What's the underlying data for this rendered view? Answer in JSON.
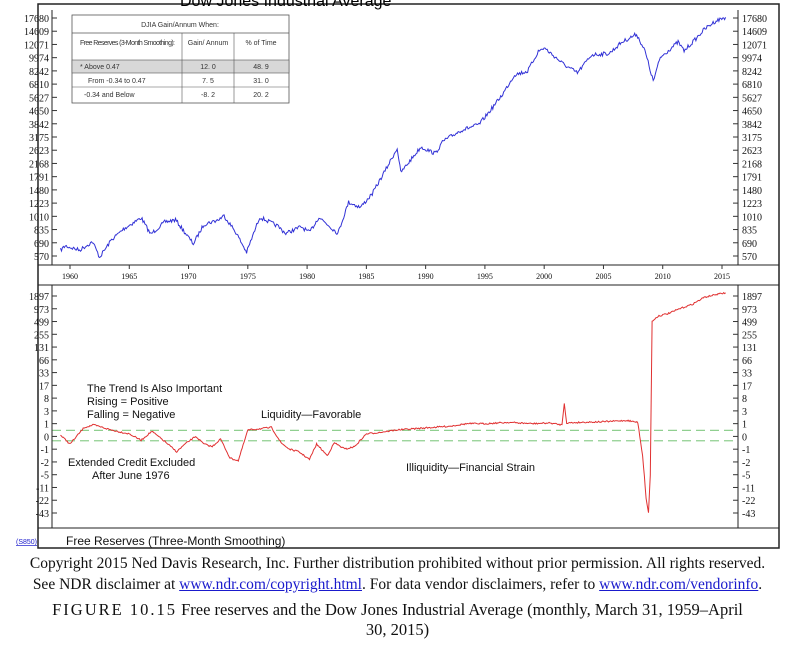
{
  "chart_data": [
    {
      "type": "line",
      "title": "Dow Jones Industrial Average",
      "y_scale": "log",
      "y_ticks": [
        "17680",
        "14609",
        "12071",
        "9974",
        "8242",
        "6810",
        "5627",
        "4650",
        "3842",
        "3175",
        "2623",
        "2168",
        "1791",
        "1480",
        "1223",
        "1010",
        "835",
        "690",
        "570"
      ],
      "x_ticks": [
        "1960",
        "1965",
        "1970",
        "1975",
        "1980",
        "1985",
        "1990",
        "1995",
        "2000",
        "2005",
        "2010",
        "2015"
      ],
      "xlim": [
        1959.25,
        2015.33
      ],
      "color": "#3232d6",
      "series": [
        {
          "x": [
            1959.2,
            1959.6,
            1960.8,
            1961.9,
            1962.5,
            1963.5,
            1964.5,
            1966.0,
            1966.8,
            1968.0,
            1968.9,
            1970.4,
            1971.3,
            1972.5,
            1973.0,
            1974.0,
            1974.9,
            1976.0,
            1977.5,
            1978.2,
            1979.5,
            1980.2,
            1981.0,
            1982.6,
            1983.5,
            1984.5,
            1985.5,
            1986.5,
            1987.6,
            1987.9,
            1989.6,
            1990.8,
            1991.5,
            1993.0,
            1994.5,
            1995.5,
            1996.5,
            1997.5,
            1998.6,
            1999.5,
            2000.0,
            2001.7,
            2002.8,
            2004.0,
            2005.5,
            2006.5,
            2007.8,
            2008.5,
            2009.2,
            2009.8,
            2011.3,
            2011.8,
            2012.8,
            2013.5,
            2014.5,
            2015.3
          ],
          "values": [
            620,
            660,
            620,
            700,
            560,
            720,
            840,
            990,
            780,
            930,
            960,
            680,
            900,
            960,
            1020,
            800,
            600,
            1000,
            880,
            790,
            870,
            800,
            1000,
            790,
            1240,
            1150,
            1400,
            1900,
            2700,
            1900,
            2750,
            2500,
            3000,
            3500,
            3800,
            4700,
            5900,
            7800,
            8200,
            10900,
            11500,
            9000,
            8000,
            10400,
            10600,
            12400,
            14000,
            11000,
            7100,
            10000,
            12500,
            11000,
            13100,
            15000,
            17000,
            17850
          ]
        }
      ]
    },
    {
      "type": "line",
      "title": "Free Reserves (Three-Month Smoothing)",
      "y_scale": "symmetric-log",
      "y_ticks": [
        "1897",
        "973",
        "499",
        "255",
        "131",
        "66",
        "33",
        "17",
        "8",
        "3",
        "1",
        "0",
        "-1",
        "-2",
        "-5",
        "-11",
        "-22",
        "-43"
      ],
      "x_ticks": [
        "1960",
        "1965",
        "1970",
        "1975",
        "1980",
        "1985",
        "1990",
        "1995",
        "2000",
        "2005",
        "2010",
        "2015"
      ],
      "xlim": [
        1959.25,
        2015.33
      ],
      "color": "#e03030",
      "reference_lines": [
        0.47,
        -0.34
      ],
      "reference_color": "#90cf90",
      "series": [
        {
          "x": [
            1959.2,
            1960.0,
            1961.2,
            1962.0,
            1963.5,
            1965.0,
            1966.0,
            1966.9,
            1968.0,
            1969.0,
            1969.7,
            1970.6,
            1971.3,
            1972.0,
            1972.7,
            1973.5,
            1974.2,
            1975.0,
            1976.0,
            1977.0,
            1977.8,
            1978.5,
            1979.3,
            1980.2,
            1980.8,
            1981.7,
            1982.3,
            1983.2,
            1984.0,
            1985.0,
            1986.0,
            1987.5,
            1989.0,
            1990.5,
            1992.0,
            1993.5,
            1995.0,
            1997.0,
            1999.0,
            2000.5,
            2001.5,
            2001.7,
            2001.9,
            2003.0,
            2005.0,
            2007.0,
            2007.9,
            2008.3,
            2008.6,
            2008.8,
            2008.95,
            2009.1,
            2009.6,
            2010.5,
            2011.5,
            2012.5,
            2013.5,
            2014.5,
            2015.3
          ],
          "values": [
            0.1,
            -0.6,
            0.7,
            0.9,
            0.5,
            0.2,
            -0.3,
            0.4,
            -0.4,
            -1.2,
            -0.6,
            0.0,
            -0.6,
            -0.8,
            -0.2,
            -1.7,
            -1.9,
            0.5,
            0.6,
            0.7,
            -0.5,
            -1.0,
            -1.2,
            -1.8,
            -0.6,
            -1.5,
            -0.5,
            -1.0,
            -0.8,
            0.2,
            0.3,
            0.5,
            0.6,
            0.7,
            0.8,
            1.0,
            1.0,
            1.2,
            1.0,
            1.1,
            0.9,
            6.0,
            1.1,
            1.2,
            1.3,
            1.5,
            1.2,
            -1.5,
            -20,
            -43,
            -5,
            500,
            700,
            800,
            1000,
            1300,
            1800,
            2200,
            2600
          ]
        }
      ]
    }
  ],
  "table": {
    "title": "DJIA  Gain/Annum   When:",
    "headers": [
      "Free  Reserves (3-Month   Smoothing):",
      "Gain/ Annum",
      "% of Time"
    ],
    "rows": [
      [
        "* Above  0.47",
        "12. 0",
        "48. 9"
      ],
      [
        "From  -0.34  to 0.47",
        "7. 5",
        "31. 0"
      ],
      [
        "-0.34  and  Below",
        "-8. 2",
        "20. 2"
      ]
    ]
  },
  "annotations": {
    "trend": "The Trend Is Also Important",
    "rising": "Rising = Positive",
    "falling": "Falling = Negative",
    "liquidity": "Liquidity—Favorable",
    "illiquidity": "Illiquidity—Financial Strain",
    "extended1": "Extended Credit Excluded",
    "extended2": "After June 1976",
    "code": "(S850)"
  },
  "caption": {
    "copyright": "Copyright 2015 Ned Davis Research, Inc. Further distribution prohibited without prior permission. All rights reserved.",
    "see": "See NDR disclaimer at",
    "link1": "www.ndr.com/copyright.html",
    "vendor": ". For data vendor disclaimers, refer to",
    "link2": "www.ndr.com/vendorinfo",
    "end": ".",
    "figure_label": "FIGURE 10.15",
    "figure_text": "Free reserves and the Dow Jones Industrial Average (monthly, March 31, 1959–April 30, 2015)"
  }
}
